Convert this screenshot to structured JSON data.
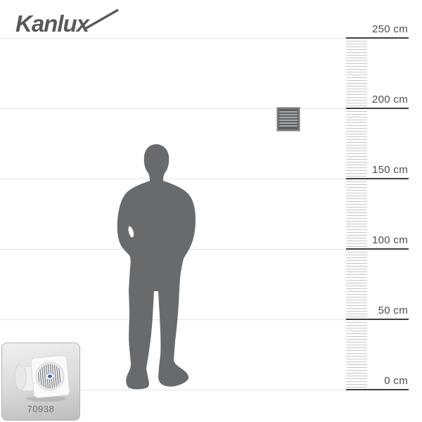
{
  "brand": {
    "logo_text": "Kanlux"
  },
  "ruler": {
    "unit": "cm",
    "min_cm": 0,
    "max_cm": 250,
    "tick_step_cm": 2,
    "major_marks": [
      {
        "cm": 250,
        "label": "250 cm"
      },
      {
        "cm": 200,
        "label": "200 cm"
      },
      {
        "cm": 150,
        "label": "150 cm"
      },
      {
        "cm": 100,
        "label": "100 cm"
      },
      {
        "cm": 50,
        "label": "50 cm"
      },
      {
        "cm": 0,
        "label": "0 cm"
      }
    ]
  },
  "figure": {
    "type": "standing-man-silhouette"
  },
  "wall_product": {
    "type": "ventilation-grille"
  },
  "thumbnail": {
    "code": "70938",
    "image": "white-axial-fan"
  },
  "colors": {
    "gridline": "#e3e3e3",
    "ruler_tick": "#c6c6c6",
    "ruler_major_line": "#3f3f3f",
    "ruler_label": "#4d4d4d",
    "silhouette": "#686b6e",
    "logo": "#58595b",
    "thumb_border": "#b3b3b3",
    "thumb_bg_top": "#f0f0f0",
    "thumb_bg_bottom": "#bcbcbc",
    "product_code_text": "#6e6e6e",
    "grille_frame": "#7a7d80",
    "grille_dark": "#5d6063",
    "grille_slat": "#a6a9ac",
    "fan_center_blue": "#3f62c8"
  }
}
